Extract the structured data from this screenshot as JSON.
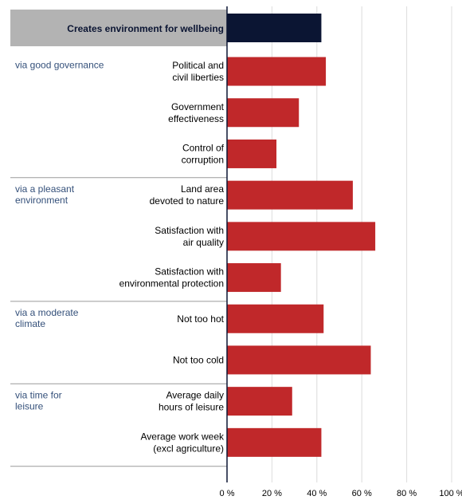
{
  "chart_data": {
    "type": "bar",
    "orientation": "horizontal",
    "header": {
      "label": "Creates environment for wellbeing",
      "value": 42,
      "color": "#0b1533"
    },
    "groups": [
      {
        "label": [
          "via good governance"
        ],
        "items": [
          {
            "label": [
              "Political and",
              "civil liberties"
            ],
            "value": 44
          },
          {
            "label": [
              "Government",
              "effectiveness"
            ],
            "value": 32
          },
          {
            "label": [
              "Control of",
              "corruption"
            ],
            "value": 22
          }
        ]
      },
      {
        "label": [
          "via a pleasant",
          "environment"
        ],
        "items": [
          {
            "label": [
              "Land area",
              "devoted to nature"
            ],
            "value": 56
          },
          {
            "label": [
              "Satisfaction with",
              "air quality"
            ],
            "value": 66
          },
          {
            "label": [
              "Satisfaction with",
              "environmental protection"
            ],
            "value": 24
          }
        ]
      },
      {
        "label": [
          "via a moderate",
          "climate"
        ],
        "items": [
          {
            "label": [
              "Not too hot"
            ],
            "value": 43
          },
          {
            "label": [
              "Not too cold"
            ],
            "value": 64
          }
        ]
      },
      {
        "label": [
          "via time for",
          "leisure"
        ],
        "items": [
          {
            "label": [
              "Average daily",
              "hours of leisure"
            ],
            "value": 29
          },
          {
            "label": [
              "Average work week",
              "(excl agriculture)"
            ],
            "value": 42
          }
        ]
      }
    ],
    "x_ticks": [
      "0 %",
      "20 %",
      "40 %",
      "60 %",
      "80 %",
      "100 %"
    ],
    "xlim": [
      0,
      100
    ],
    "grid": true,
    "bar_color": "#c0282a"
  }
}
